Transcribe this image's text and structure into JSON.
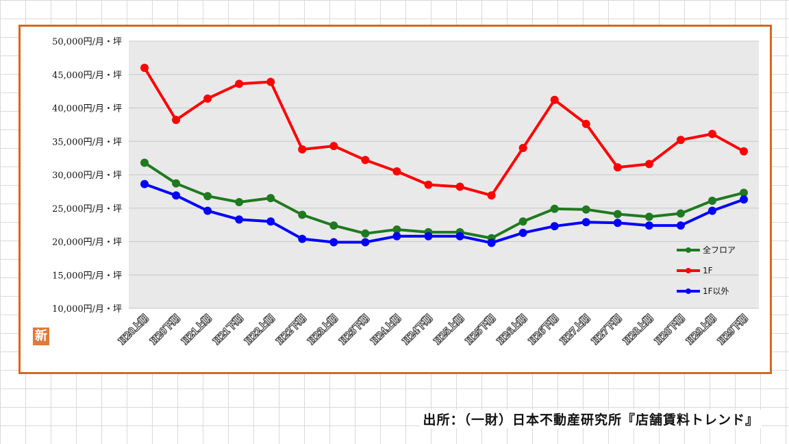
{
  "source_note": "出所：（一財）日本不動産研究所『店舗賃料トレンド』",
  "logo_text": "新",
  "chart_data": {
    "type": "line",
    "title": "",
    "xlabel": "",
    "ylabel": "",
    "categories": [
      "H20上期",
      "H20下期",
      "H21上期",
      "H21下期",
      "H22上期",
      "H22下期",
      "H23上期",
      "H23下期",
      "H24上期",
      "H24下期",
      "H25上期",
      "H25下期",
      "H26上期",
      "H26下期",
      "H27上期",
      "H27下期",
      "H28上期",
      "H28下期",
      "H29上期",
      "H29下期"
    ],
    "ylim": [
      10000,
      50000
    ],
    "yticks": [
      10000,
      15000,
      20000,
      25000,
      30000,
      35000,
      40000,
      45000,
      50000
    ],
    "ytick_labels": [
      "10,000円/月・坪",
      "15,000円/月・坪",
      "20,000円/月・坪",
      "25,000円/月・坪",
      "30,000円/月・坪",
      "35,000円/月・坪",
      "40,000円/月・坪",
      "45,000円/月・坪",
      "50,000円/月・坪"
    ],
    "grid": true,
    "legend_position": "right",
    "series": [
      {
        "name": "全フロア",
        "color": "#1f7a1f",
        "values": [
          31800,
          28700,
          26800,
          25900,
          26500,
          24000,
          22400,
          21200,
          21800,
          21400,
          21400,
          20500,
          23000,
          24900,
          24800,
          24100,
          23700,
          24200,
          26100,
          27300
        ]
      },
      {
        "name": "1F",
        "color": "#ff0000",
        "values": [
          46000,
          38200,
          41400,
          43600,
          43900,
          33800,
          34300,
          32200,
          30500,
          28500,
          28200,
          26900,
          34000,
          41200,
          37600,
          31100,
          31600,
          35200,
          36100,
          33500
        ]
      },
      {
        "name": "1F以外",
        "color": "#0000ff",
        "values": [
          28600,
          26900,
          24600,
          23300,
          23000,
          20400,
          19900,
          19900,
          20800,
          20800,
          20800,
          19800,
          21300,
          22300,
          22900,
          22800,
          22400,
          22400,
          24600,
          26300
        ]
      }
    ]
  }
}
